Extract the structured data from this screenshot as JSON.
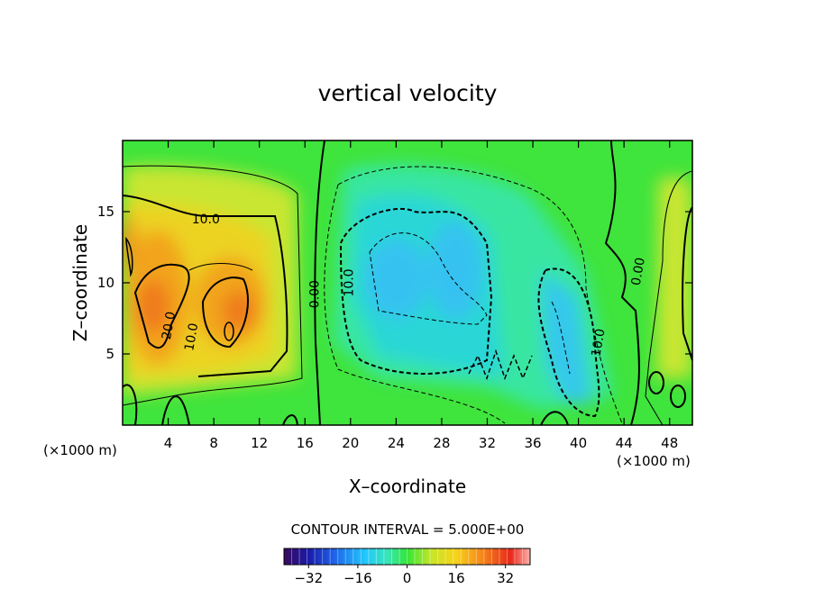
{
  "chart_data": {
    "type": "heatmap",
    "title": "vertical velocity",
    "xlabel": "X–coordinate",
    "ylabel": "Z–coordinate",
    "x_unit_left": "(×1000 m)",
    "x_unit_right": "(×1000 m)",
    "xlim": [
      0,
      50
    ],
    "ylim": [
      0,
      20
    ],
    "x_ticks": [
      4,
      8,
      12,
      16,
      20,
      24,
      28,
      32,
      36,
      40,
      44,
      48
    ],
    "y_ticks": [
      5,
      10,
      15
    ],
    "grid": false,
    "contour_interval_text": "CONTOUR INTERVAL = 5.000E+00",
    "colorbar": {
      "min": -40,
      "max": 40,
      "tick_values": [
        -32,
        -16,
        0,
        16,
        32
      ],
      "tick_labels": [
        "−32",
        "−16",
        "0",
        "16",
        "32"
      ],
      "colors": [
        "#3a0a5e",
        "#1a1aa8",
        "#1e60e8",
        "#22c8ff",
        "#37e6b8",
        "#33e638",
        "#c8e626",
        "#f7d21a",
        "#f58a1a",
        "#e8281a",
        "#ffb0a8"
      ]
    },
    "contour_labels": [
      {
        "text": "10.0",
        "x": 7.3,
        "z": 14.5,
        "rotate": 0
      },
      {
        "text": "20.0",
        "x": 4.0,
        "z": 7.0,
        "rotate": -80
      },
      {
        "text": "10.0",
        "x": 6.0,
        "z": 6.2,
        "rotate": -80
      },
      {
        "text": "0.00",
        "x": 16.8,
        "z": 9.2,
        "rotate": -90
      },
      {
        "text": "10.0",
        "x": 19.8,
        "z": 10.0,
        "rotate": -90
      },
      {
        "text": "10.0",
        "x": 41.7,
        "z": 5.8,
        "rotate": -80
      },
      {
        "text": "0.00",
        "x": 45.2,
        "z": 10.8,
        "rotate": -80
      }
    ],
    "features": [
      {
        "kind": "max",
        "x": 4.5,
        "z": 8.5,
        "value": 26
      },
      {
        "kind": "max",
        "x": 9.5,
        "z": 8.0,
        "value": 24
      },
      {
        "kind": "max",
        "x": 1.0,
        "z": 12.0,
        "value": 20
      },
      {
        "kind": "min",
        "x": 24.0,
        "z": 10.5,
        "value": -15
      },
      {
        "kind": "min",
        "x": 28.5,
        "z": 11.5,
        "value": -16
      },
      {
        "kind": "min",
        "x": 38.0,
        "z": 7.0,
        "value": -15
      }
    ]
  }
}
